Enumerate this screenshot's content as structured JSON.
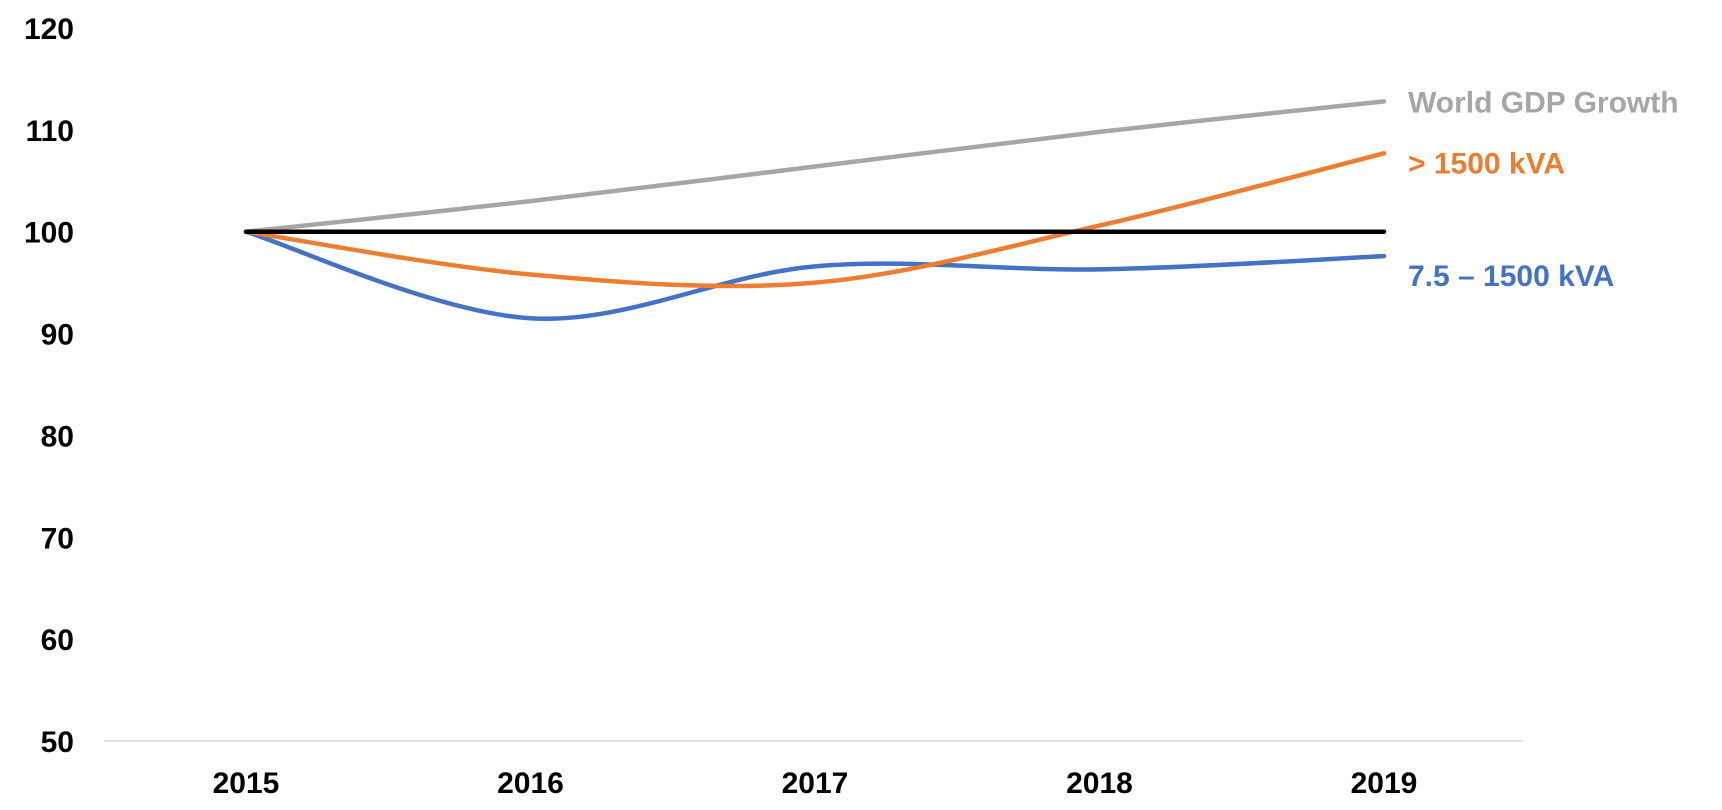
{
  "chart_data": {
    "type": "line",
    "title": "",
    "xlabel": "",
    "ylabel": "",
    "categories": [
      "2015",
      "2016",
      "2017",
      "2018",
      "2019"
    ],
    "ylim": [
      50,
      120
    ],
    "yticks": [
      50,
      60,
      70,
      80,
      90,
      100,
      110,
      120
    ],
    "grid": false,
    "smoothed": true,
    "legend": "inline-right",
    "series": [
      {
        "name": "World GDP Growth",
        "color": "#A6A6A6",
        "values": [
          100,
          103.0,
          106.4,
          109.8,
          112.8
        ]
      },
      {
        "name": "> 1500 kVA",
        "color": "#ED7D31",
        "values": [
          100,
          95.8,
          95.0,
          100.6,
          107.7
        ]
      },
      {
        "name": "7.5 – 1500 kVA",
        "color": "#4472C4",
        "values": [
          100,
          91.5,
          96.6,
          96.3,
          97.6
        ]
      },
      {
        "name": "",
        "color": "#000000",
        "values": [
          100,
          100,
          100,
          100,
          100
        ]
      }
    ]
  }
}
